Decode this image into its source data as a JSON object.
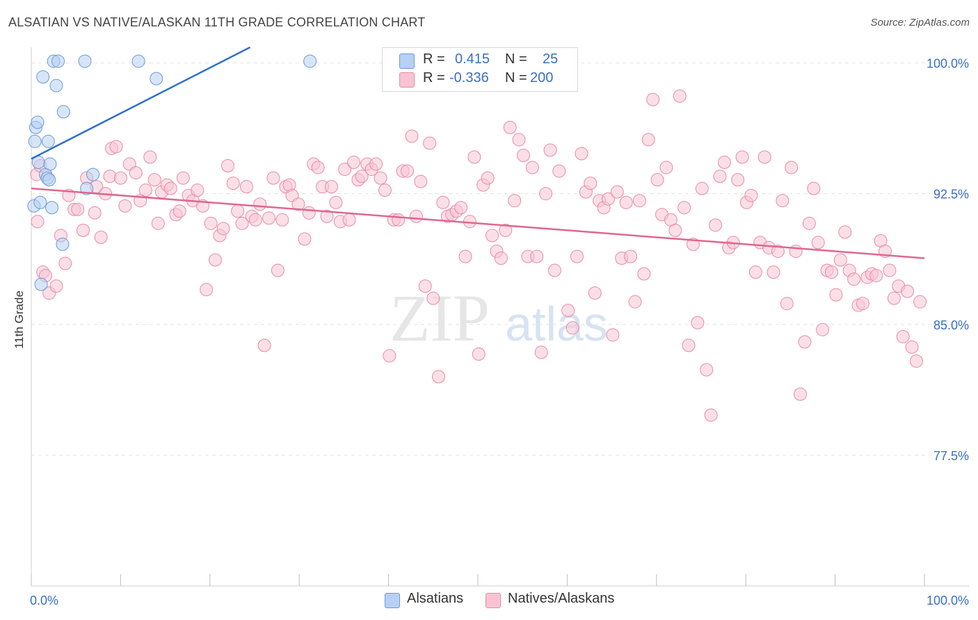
{
  "title": "ALSATIAN VS NATIVE/ALASKAN 11TH GRADE CORRELATION CHART",
  "source": "Source: ZipAtlas.com",
  "watermark": {
    "zip": "ZIP",
    "atlas": "atlas"
  },
  "colors": {
    "blue_fill": "#b7d0f3",
    "blue_stroke": "#6a9ad6",
    "blue_line": "#2f6fcc",
    "pink_fill": "#f8c4d4",
    "pink_stroke": "#e98aa9",
    "pink_line": "#e0668f",
    "axis_label": "#3a6fc4",
    "grid": "#e2e2e2"
  },
  "legend": {
    "rows": [
      {
        "r_label": "R =",
        "r_value": "0.415",
        "n_label": "N =",
        "n_value": "25"
      },
      {
        "r_label": "R =",
        "r_value": "-0.336",
        "n_label": "N =",
        "n_value": "200"
      }
    ]
  },
  "bottom_legend": {
    "series1": "Alsatians",
    "series2": "Natives/Alaskans"
  },
  "chart_data": {
    "type": "scatter",
    "title": "ALSATIAN VS NATIVE/ALASKAN 11TH GRADE CORRELATION CHART",
    "xlabel": "",
    "ylabel": "11th Grade",
    "xlim": [
      0,
      100
    ],
    "ylim": [
      70,
      100.9
    ],
    "x_tick_labels": [
      "0.0%",
      "100.0%"
    ],
    "y_ticks": [
      {
        "value": 100.0,
        "label": "100.0%"
      },
      {
        "value": 92.5,
        "label": "92.5%"
      },
      {
        "value": 85.0,
        "label": "85.0%"
      },
      {
        "value": 77.5,
        "label": "77.5%"
      }
    ],
    "series": [
      {
        "name": "Alsatians",
        "color": "#b7d0f3",
        "trend": {
          "x0": 0,
          "y0": 94.5,
          "x1": 24.5,
          "y1": 100.9
        },
        "points": [
          [
            0.3,
            91.8
          ],
          [
            0.4,
            95.5
          ],
          [
            0.5,
            96.3
          ],
          [
            0.7,
            96.6
          ],
          [
            0.8,
            94.3
          ],
          [
            1.0,
            92.0
          ],
          [
            1.1,
            87.3
          ],
          [
            1.3,
            99.2
          ],
          [
            1.6,
            93.6
          ],
          [
            1.8,
            93.4
          ],
          [
            1.9,
            95.5
          ],
          [
            2.0,
            93.3
          ],
          [
            2.1,
            94.2
          ],
          [
            2.3,
            91.7
          ],
          [
            2.5,
            100.1
          ],
          [
            2.8,
            98.7
          ],
          [
            3.0,
            100.1
          ],
          [
            3.5,
            89.6
          ],
          [
            3.6,
            97.2
          ],
          [
            6.0,
            100.1
          ],
          [
            6.2,
            92.8
          ],
          [
            6.9,
            93.6
          ],
          [
            12.0,
            100.1
          ],
          [
            14.0,
            99.1
          ],
          [
            31.2,
            100.1
          ]
        ]
      },
      {
        "name": "Natives/Alaskans",
        "color": "#f8c4d4",
        "trend": {
          "x0": 0,
          "y0": 92.8,
          "x1": 100,
          "y1": 88.8
        },
        "points": [
          [
            0.6,
            93.6
          ],
          [
            0.7,
            90.9
          ],
          [
            1.0,
            94.1
          ],
          [
            1.3,
            88.0
          ],
          [
            1.6,
            87.8
          ],
          [
            2.0,
            86.8
          ],
          [
            2.8,
            87.2
          ],
          [
            3.3,
            90.1
          ],
          [
            3.8,
            88.5
          ],
          [
            4.2,
            92.4
          ],
          [
            4.8,
            91.6
          ],
          [
            5.2,
            91.6
          ],
          [
            5.8,
            90.4
          ],
          [
            6.2,
            93.4
          ],
          [
            7.1,
            91.4
          ],
          [
            7.3,
            92.9
          ],
          [
            7.8,
            90.0
          ],
          [
            8.3,
            92.5
          ],
          [
            8.8,
            93.5
          ],
          [
            9.0,
            95.1
          ],
          [
            9.5,
            95.2
          ],
          [
            10.0,
            93.4
          ],
          [
            10.5,
            91.8
          ],
          [
            11.0,
            94.2
          ],
          [
            11.7,
            93.7
          ],
          [
            12.2,
            92.1
          ],
          [
            12.8,
            92.7
          ],
          [
            13.3,
            94.6
          ],
          [
            13.8,
            93.3
          ],
          [
            14.2,
            90.8
          ],
          [
            14.6,
            92.6
          ],
          [
            15.2,
            93.0
          ],
          [
            15.6,
            92.8
          ],
          [
            16.2,
            91.3
          ],
          [
            16.6,
            91.5
          ],
          [
            17.0,
            93.4
          ],
          [
            17.6,
            92.4
          ],
          [
            18.1,
            92.1
          ],
          [
            18.6,
            92.7
          ],
          [
            19.2,
            91.8
          ],
          [
            19.6,
            87.0
          ],
          [
            20.1,
            90.8
          ],
          [
            20.6,
            88.7
          ],
          [
            21.1,
            90.1
          ],
          [
            21.5,
            90.5
          ],
          [
            22.0,
            94.1
          ],
          [
            22.6,
            93.1
          ],
          [
            23.1,
            91.5
          ],
          [
            23.6,
            90.8
          ],
          [
            24.1,
            92.9
          ],
          [
            24.7,
            91.2
          ],
          [
            25.1,
            91.0
          ],
          [
            25.6,
            91.9
          ],
          [
            26.1,
            83.8
          ],
          [
            26.6,
            91.1
          ],
          [
            27.1,
            93.4
          ],
          [
            27.6,
            88.1
          ],
          [
            28.1,
            91.0
          ],
          [
            28.5,
            92.9
          ],
          [
            28.9,
            93.0
          ],
          [
            29.2,
            92.4
          ],
          [
            29.9,
            91.9
          ],
          [
            30.6,
            89.9
          ],
          [
            31.1,
            91.4
          ],
          [
            31.6,
            94.2
          ],
          [
            32.1,
            94.0
          ],
          [
            32.6,
            92.9
          ],
          [
            33.1,
            91.2
          ],
          [
            33.6,
            92.9
          ],
          [
            34.1,
            92.0
          ],
          [
            34.6,
            90.9
          ],
          [
            35.1,
            93.9
          ],
          [
            35.6,
            91.0
          ],
          [
            36.1,
            94.3
          ],
          [
            36.6,
            93.3
          ],
          [
            37.0,
            93.5
          ],
          [
            37.6,
            94.2
          ],
          [
            38.1,
            93.9
          ],
          [
            38.6,
            94.2
          ],
          [
            39.1,
            93.4
          ],
          [
            39.6,
            92.7
          ],
          [
            40.1,
            83.2
          ],
          [
            40.6,
            91.0
          ],
          [
            41.1,
            91.0
          ],
          [
            41.6,
            93.8
          ],
          [
            42.1,
            93.8
          ],
          [
            42.6,
            95.8
          ],
          [
            43.1,
            91.2
          ],
          [
            43.6,
            93.2
          ],
          [
            44.1,
            87.2
          ],
          [
            44.6,
            95.4
          ],
          [
            45.0,
            86.5
          ],
          [
            45.6,
            82.0
          ],
          [
            46.1,
            92.0
          ],
          [
            46.6,
            91.2
          ],
          [
            47.1,
            91.3
          ],
          [
            47.6,
            91.5
          ],
          [
            48.1,
            91.7
          ],
          [
            48.6,
            88.9
          ],
          [
            49.1,
            90.9
          ],
          [
            49.6,
            94.6
          ],
          [
            50.1,
            83.3
          ],
          [
            50.6,
            93.0
          ],
          [
            51.1,
            93.4
          ],
          [
            51.6,
            90.1
          ],
          [
            52.1,
            89.2
          ],
          [
            52.6,
            88.8
          ],
          [
            53.1,
            90.4
          ],
          [
            53.6,
            96.3
          ],
          [
            54.1,
            92.1
          ],
          [
            54.6,
            95.6
          ],
          [
            55.1,
            94.7
          ],
          [
            55.6,
            88.9
          ],
          [
            56.1,
            94.0
          ],
          [
            56.6,
            88.9
          ],
          [
            57.1,
            83.4
          ],
          [
            57.6,
            92.5
          ],
          [
            58.1,
            95.0
          ],
          [
            58.6,
            88.1
          ],
          [
            59.1,
            93.8
          ],
          [
            60.1,
            85.8
          ],
          [
            60.6,
            84.8
          ],
          [
            61.1,
            88.9
          ],
          [
            61.6,
            94.8
          ],
          [
            62.1,
            92.6
          ],
          [
            62.6,
            93.1
          ],
          [
            63.1,
            86.8
          ],
          [
            63.6,
            92.1
          ],
          [
            64.1,
            91.7
          ],
          [
            64.6,
            92.2
          ],
          [
            65.1,
            84.4
          ],
          [
            65.6,
            92.6
          ],
          [
            66.1,
            88.8
          ],
          [
            66.6,
            92.0
          ],
          [
            67.1,
            88.9
          ],
          [
            67.6,
            86.3
          ],
          [
            68.1,
            92.1
          ],
          [
            68.6,
            87.9
          ],
          [
            69.1,
            95.6
          ],
          [
            69.6,
            97.9
          ],
          [
            70.1,
            93.3
          ],
          [
            70.6,
            91.3
          ],
          [
            71.1,
            94.0
          ],
          [
            71.6,
            91.0
          ],
          [
            72.1,
            90.4
          ],
          [
            72.6,
            98.1
          ],
          [
            73.1,
            91.7
          ],
          [
            73.6,
            83.8
          ],
          [
            74.1,
            89.6
          ],
          [
            74.6,
            85.1
          ],
          [
            75.1,
            92.8
          ],
          [
            75.6,
            82.4
          ],
          [
            76.1,
            79.8
          ],
          [
            76.6,
            90.7
          ],
          [
            77.1,
            93.5
          ],
          [
            77.6,
            94.3
          ],
          [
            78.1,
            89.4
          ],
          [
            78.6,
            89.7
          ],
          [
            79.1,
            93.3
          ],
          [
            79.6,
            94.6
          ],
          [
            80.1,
            92.0
          ],
          [
            80.6,
            92.4
          ],
          [
            81.1,
            88.0
          ],
          [
            81.6,
            89.7
          ],
          [
            82.1,
            94.6
          ],
          [
            82.6,
            89.4
          ],
          [
            83.1,
            88.0
          ],
          [
            83.6,
            89.2
          ],
          [
            84.1,
            92.1
          ],
          [
            84.6,
            86.2
          ],
          [
            85.1,
            94.0
          ],
          [
            85.6,
            89.2
          ],
          [
            86.1,
            81.0
          ],
          [
            86.6,
            84.0
          ],
          [
            87.1,
            90.8
          ],
          [
            87.6,
            92.8
          ],
          [
            88.1,
            89.7
          ],
          [
            88.6,
            84.7
          ],
          [
            89.1,
            88.1
          ],
          [
            89.6,
            88.0
          ],
          [
            90.1,
            86.7
          ],
          [
            90.6,
            88.7
          ],
          [
            91.1,
            90.3
          ],
          [
            91.6,
            88.1
          ],
          [
            92.1,
            87.6
          ],
          [
            92.6,
            86.1
          ],
          [
            93.1,
            86.2
          ],
          [
            93.6,
            87.7
          ],
          [
            94.1,
            87.9
          ],
          [
            94.6,
            87.8
          ],
          [
            95.1,
            89.8
          ],
          [
            95.6,
            89.2
          ],
          [
            96.1,
            88.1
          ],
          [
            96.6,
            86.5
          ],
          [
            97.1,
            87.2
          ],
          [
            97.6,
            84.3
          ],
          [
            98.1,
            86.9
          ],
          [
            98.6,
            83.7
          ],
          [
            99.1,
            82.9
          ],
          [
            99.5,
            86.3
          ]
        ]
      }
    ]
  }
}
